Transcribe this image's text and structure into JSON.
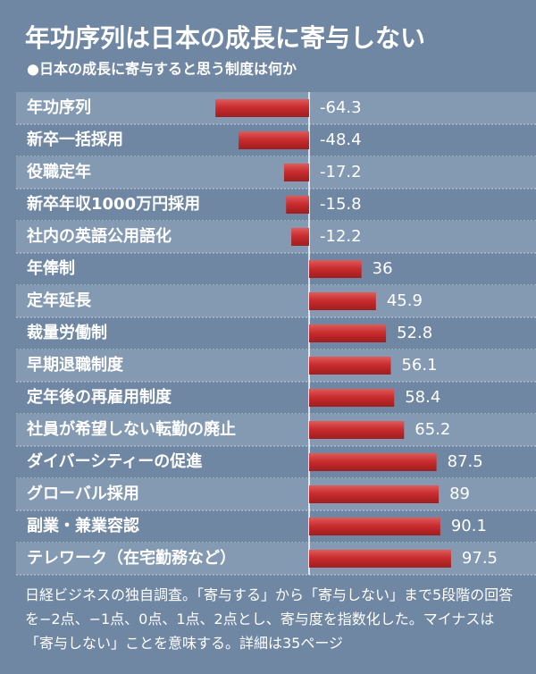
{
  "chart_data": {
    "type": "bar",
    "orientation": "horizontal",
    "title": "年功序列は日本の成長に寄与しない",
    "subtitle": "●日本の成長に寄与すると思う制度は何か",
    "categories": [
      "年功序列",
      "新卒一括採用",
      "役職定年",
      "新卒年収1000万円採用",
      "社内の英語公用語化",
      "年俸制",
      "定年延長",
      "裁量労働制",
      "早期退職制度",
      "定年後の再雇用制度",
      "社員が希望しない転勤の廃止",
      "ダイバーシティーの促進",
      "グローバル採用",
      "副業・兼業容認",
      "テレワーク（在宅勤務など）"
    ],
    "values": [
      -64.3,
      -48.4,
      -17.2,
      -15.8,
      -12.2,
      36,
      45.9,
      52.8,
      56.1,
      58.4,
      65.2,
      87.5,
      89,
      90.1,
      97.5
    ],
    "color": "#c62a2c",
    "note": "日経ビジネスの独自調査。「寄与する」から「寄与しない」まで5段階の回答を−2点、−1点、0点、1点、2点とし、寄与度を指数化した。マイナスは「寄与しない」ことを意味する。詳細は35ページ"
  }
}
